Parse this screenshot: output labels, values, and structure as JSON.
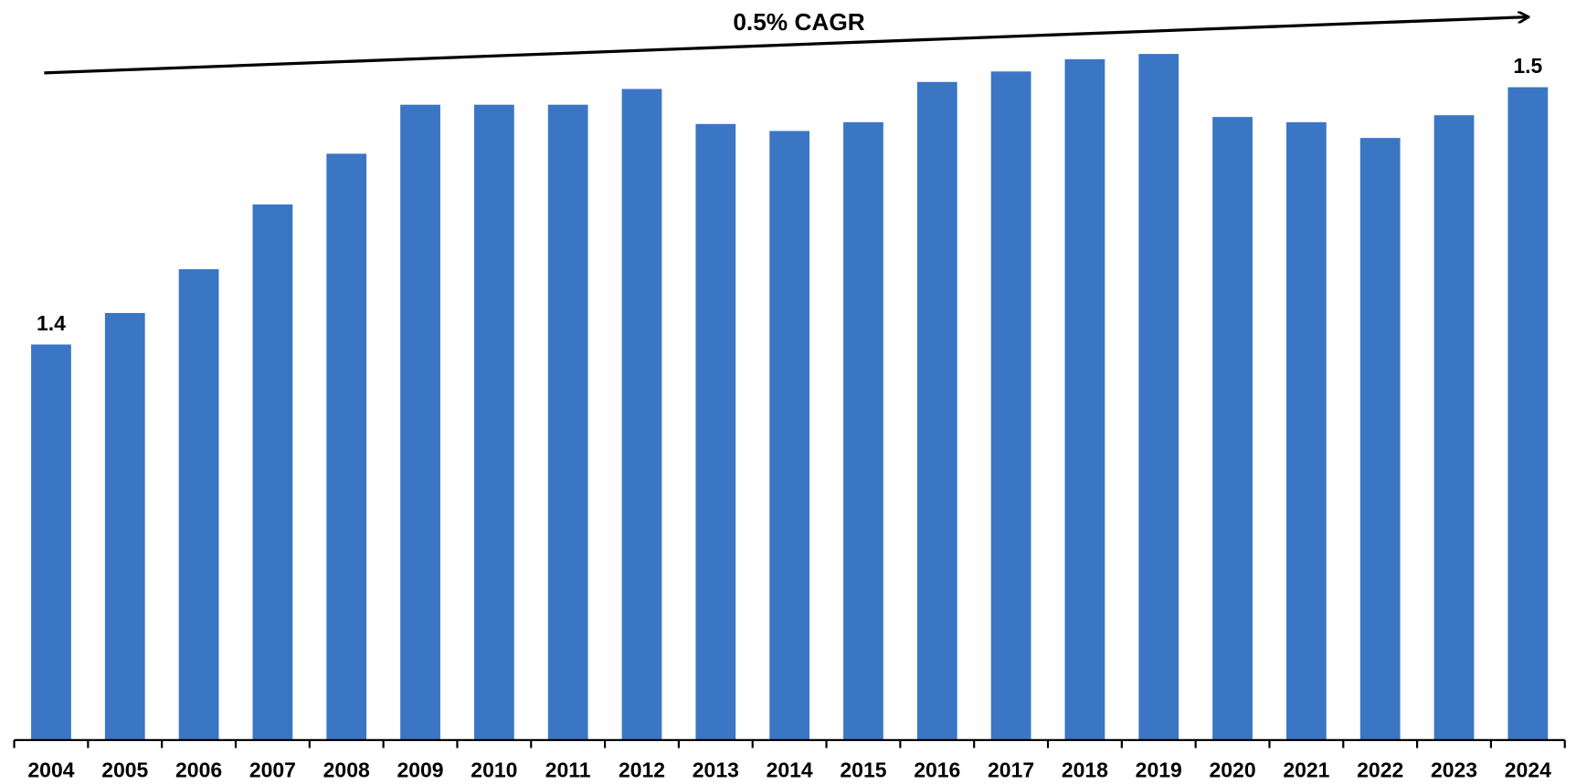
{
  "chart_data": {
    "type": "bar",
    "annotation": "0.5% CAGR",
    "categories": [
      "2004",
      "2005",
      "2006",
      "2007",
      "2008",
      "2009",
      "2010",
      "2011",
      "2012",
      "2013",
      "2014",
      "2015",
      "2016",
      "2017",
      "2018",
      "2019",
      "2020",
      "2021",
      "2022",
      "2023",
      "2024"
    ],
    "values": [
      1.401,
      1.419,
      1.444,
      1.481,
      1.51,
      1.538,
      1.538,
      1.538,
      1.547,
      1.527,
      1.523,
      1.528,
      1.551,
      1.557,
      1.564,
      1.567,
      1.531,
      1.528,
      1.519,
      1.532,
      1.548
    ],
    "value_labels": [
      "1.4",
      null,
      null,
      null,
      null,
      null,
      null,
      null,
      null,
      null,
      null,
      null,
      null,
      null,
      null,
      null,
      null,
      null,
      null,
      null,
      "1.5"
    ],
    "color": "#3b76c4",
    "ylim": [
      1.175,
      1.575
    ]
  }
}
